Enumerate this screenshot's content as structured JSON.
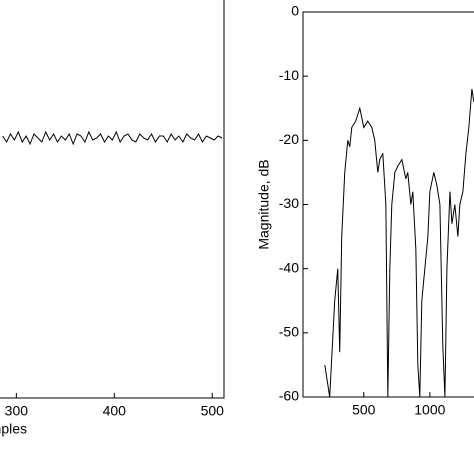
{
  "chart_data": [
    {
      "type": "line",
      "xlabel": "Samples",
      "x": [
        286,
        290,
        294,
        298,
        302,
        306,
        310,
        314,
        318,
        322,
        326,
        330,
        334,
        338,
        342,
        346,
        350,
        354,
        358,
        362,
        366,
        370,
        374,
        378,
        382,
        386,
        390,
        394,
        398,
        402,
        406,
        410,
        414,
        418,
        422,
        426,
        430,
        434,
        438,
        442,
        446,
        450,
        454,
        458,
        462,
        466,
        470,
        474,
        478,
        482,
        486,
        490,
        494,
        498,
        502,
        506,
        510
      ],
      "series": [
        {
          "color": "#000000",
          "values": [
            0.01,
            -0.02,
            0.02,
            -0.01,
            0.03,
            -0.02,
            0.01,
            -0.03,
            0.02,
            0.0,
            -0.02,
            0.03,
            -0.01,
            0.02,
            -0.02,
            0.01,
            -0.01,
            0.02,
            -0.03,
            0.02,
            0.01,
            -0.02,
            0.03,
            -0.01,
            0.0,
            0.02,
            -0.02,
            0.01,
            -0.01,
            0.03,
            -0.02,
            0.01,
            0.02,
            -0.01,
            -0.02,
            0.02,
            0.0,
            -0.01,
            0.02,
            -0.02,
            0.01,
            0.01,
            -0.02,
            0.02,
            -0.01,
            0.01,
            -0.02,
            0.02,
            0.0,
            -0.01,
            0.02,
            -0.02,
            0.01,
            0.0,
            -0.01,
            0.01,
            0.0
          ]
        }
      ],
      "xlim": [
        0,
        512
      ],
      "xticks": [
        300,
        400,
        500
      ],
      "ylim": [
        -1.3,
        0.7
      ]
    },
    {
      "type": "line",
      "ylabel": "Magnitude, dB",
      "x": [
        205,
        242,
        280,
        303,
        318,
        333,
        356,
        379,
        394,
        409,
        439,
        470,
        500,
        530,
        561,
        583,
        606,
        621,
        644,
        667,
        682,
        697,
        712,
        735,
        758,
        788,
        818,
        833,
        856,
        871,
        894,
        909,
        924,
        939,
        962,
        985,
        1000,
        1030,
        1053,
        1076,
        1098,
        1114,
        1129,
        1152,
        1167,
        1189,
        1212,
        1227,
        1250,
        1273,
        1295,
        1318,
        1333
      ],
      "series": [
        {
          "color": "#000000",
          "values": [
            -55,
            -60,
            -45,
            -40,
            -53,
            -35,
            -25,
            -20,
            -21,
            -18,
            -17,
            -15,
            -18,
            -17,
            -18,
            -20,
            -25,
            -23,
            -22,
            -30,
            -60,
            -40,
            -30,
            -25,
            -24,
            -23,
            -26,
            -25,
            -30,
            -28,
            -37,
            -55,
            -60,
            -45,
            -40,
            -35,
            -28,
            -25,
            -27,
            -30,
            -52,
            -60,
            -40,
            -28,
            -33,
            -30,
            -35,
            -30,
            -28,
            -22,
            -18,
            -12,
            -14
          ]
        }
      ],
      "xlim": [
        40,
        2000
      ],
      "xticks": [
        500,
        1000
      ],
      "ylim": [
        -60,
        0
      ],
      "yticks": [
        0,
        -10,
        -20,
        -30,
        -40,
        -50,
        -60
      ]
    }
  ]
}
